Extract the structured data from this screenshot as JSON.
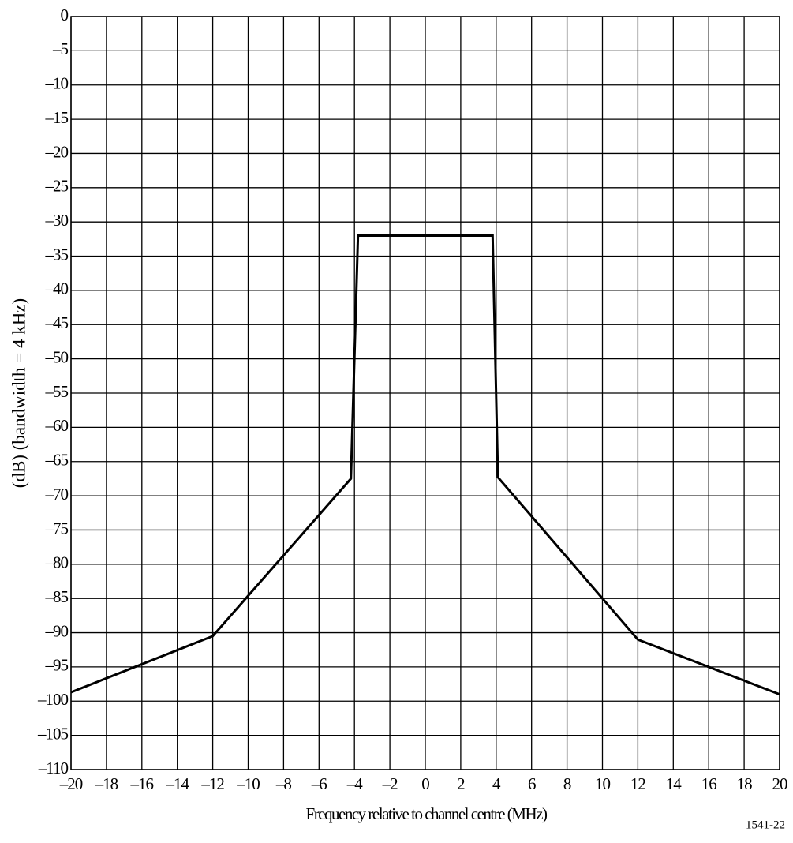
{
  "chart_data": {
    "type": "line",
    "y_label": "(dB) (bandwidth = 4 kHz)",
    "x_label": "Frequency relative to channel centre (MHz)",
    "annotation": "1541-22",
    "x": [
      -20,
      -12,
      -4.2,
      -3.8,
      3.8,
      4.1,
      12,
      20
    ],
    "series": [
      {
        "color": "#000000",
        "values": [
          -98.7,
          -90.5,
          -67.5,
          -32,
          -32,
          -67.3,
          -91,
          -99
        ]
      }
    ],
    "xlim": [
      -20,
      20
    ],
    "xticks": [
      {
        "value": -20,
        "label": "–20"
      },
      {
        "value": -18,
        "label": "–18"
      },
      {
        "value": -16,
        "label": "–16"
      },
      {
        "value": -14,
        "label": "–14"
      },
      {
        "value": -12,
        "label": "–12"
      },
      {
        "value": -10,
        "label": "–10"
      },
      {
        "value": -8,
        "label": "–8"
      },
      {
        "value": -6,
        "label": "–6"
      },
      {
        "value": -4,
        "label": "–4"
      },
      {
        "value": -2,
        "label": "–2"
      },
      0,
      2,
      4,
      6,
      8,
      10,
      12,
      14,
      16,
      18,
      20
    ],
    "ylim": [
      -110,
      0
    ],
    "yticks": [
      0,
      {
        "value": -5,
        "label": "–5"
      },
      {
        "value": -10,
        "label": "–10"
      },
      {
        "value": -15,
        "label": "–15"
      },
      {
        "value": -20,
        "label": "–20"
      },
      {
        "value": -25,
        "label": "–25"
      },
      {
        "value": -30,
        "label": "–30"
      },
      {
        "value": -35,
        "label": "–35"
      },
      {
        "value": -40,
        "label": "–40"
      },
      {
        "value": -45,
        "label": "–45"
      },
      {
        "value": -50,
        "label": "–50"
      },
      {
        "value": -55,
        "label": "–55"
      },
      {
        "value": -60,
        "label": "–60"
      },
      {
        "value": -65,
        "label": "–65"
      },
      {
        "value": -70,
        "label": "–70"
      },
      {
        "value": -75,
        "label": "–75"
      },
      {
        "value": -80,
        "label": "–80"
      },
      {
        "value": -85,
        "label": "–85"
      },
      {
        "value": -90,
        "label": "–90"
      },
      {
        "value": -95,
        "label": "–95"
      },
      {
        "value": -100,
        "label": "–100"
      },
      {
        "value": -105,
        "label": "–105"
      },
      {
        "value": -110,
        "label": "–110"
      }
    ],
    "grid": true
  }
}
